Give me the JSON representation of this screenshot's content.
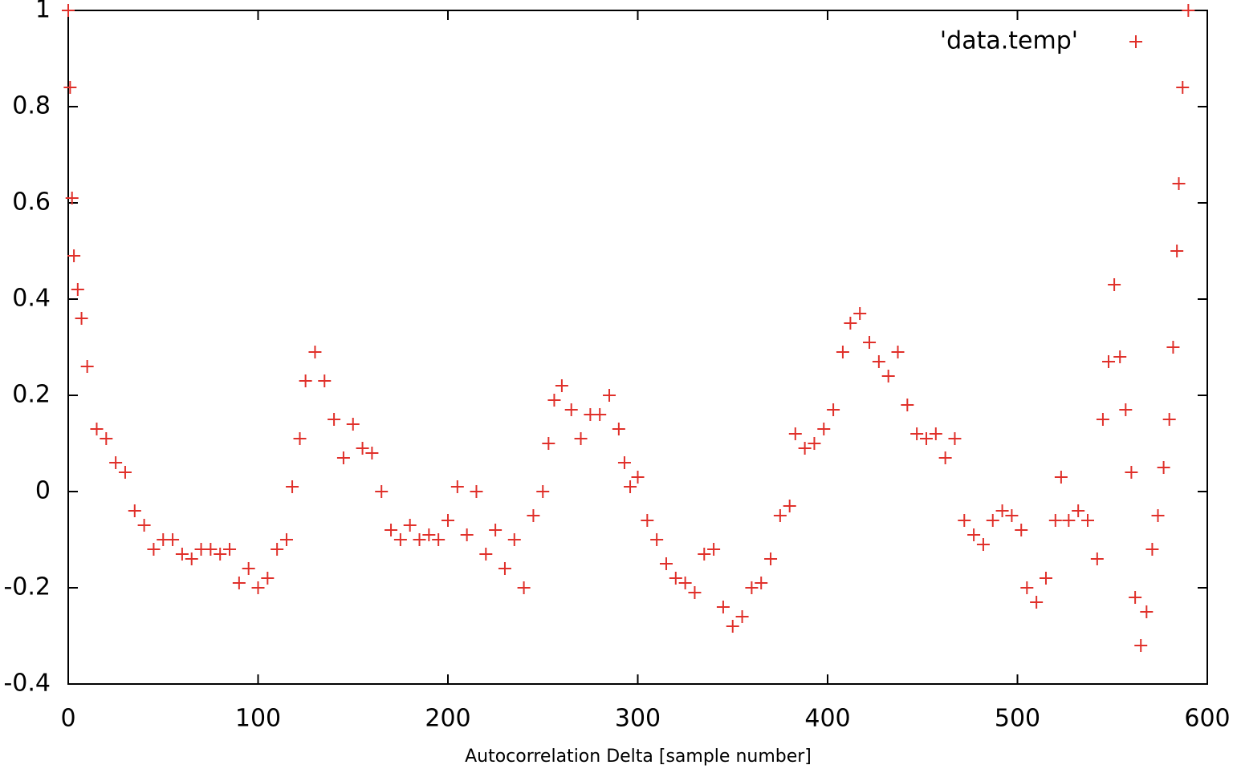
{
  "chart_data": {
    "type": "scatter",
    "x_label": "Autocorrelation Delta [sample number]",
    "xlim": [
      0,
      600
    ],
    "xticks": [
      0,
      100,
      200,
      300,
      400,
      500,
      600
    ],
    "ylim": [
      -0.4,
      1
    ],
    "yticks": [
      -0.4,
      -0.2,
      0,
      0.2,
      0.4,
      0.6,
      0.8,
      1
    ],
    "legend": "top-right",
    "series": [
      {
        "name": "'data.temp'",
        "color": "#e0302a",
        "x": [
          0,
          1,
          2,
          3,
          5,
          7,
          10,
          15,
          20,
          25,
          30,
          35,
          40,
          45,
          50,
          55,
          60,
          65,
          70,
          75,
          80,
          85,
          90,
          95,
          100,
          105,
          110,
          115,
          118,
          122,
          125,
          130,
          135,
          140,
          145,
          150,
          155,
          160,
          165,
          170,
          175,
          180,
          185,
          190,
          195,
          200,
          205,
          210,
          215,
          220,
          225,
          230,
          235,
          240,
          245,
          250,
          253,
          256,
          260,
          265,
          270,
          275,
          280,
          285,
          290,
          293,
          296,
          300,
          305,
          310,
          315,
          320,
          325,
          330,
          335,
          340,
          345,
          350,
          355,
          360,
          365,
          370,
          375,
          380,
          383,
          388,
          393,
          398,
          403,
          408,
          412,
          417,
          422,
          427,
          432,
          437,
          442,
          447,
          452,
          457,
          462,
          467,
          472,
          477,
          482,
          487,
          492,
          497,
          502,
          505,
          510,
          515,
          520,
          523,
          527,
          532,
          537,
          542,
          545,
          548,
          551,
          554,
          557,
          560,
          562,
          565,
          568,
          571,
          574,
          577,
          580,
          582,
          584,
          585,
          587,
          590
        ],
        "values": [
          1.0,
          0.84,
          0.61,
          0.49,
          0.42,
          0.36,
          0.26,
          0.13,
          0.11,
          0.06,
          0.04,
          -0.04,
          -0.07,
          -0.12,
          -0.1,
          -0.1,
          -0.13,
          -0.14,
          -0.12,
          -0.12,
          -0.13,
          -0.12,
          -0.19,
          -0.16,
          -0.2,
          -0.18,
          -0.12,
          -0.1,
          0.01,
          0.11,
          0.23,
          0.29,
          0.23,
          0.15,
          0.07,
          0.14,
          0.09,
          0.08,
          0.0,
          -0.08,
          -0.1,
          -0.07,
          -0.1,
          -0.09,
          -0.1,
          -0.06,
          0.01,
          -0.09,
          0.0,
          -0.13,
          -0.08,
          -0.16,
          -0.1,
          -0.2,
          -0.05,
          0.0,
          0.1,
          0.19,
          0.22,
          0.17,
          0.11,
          0.16,
          0.16,
          0.2,
          0.13,
          0.06,
          0.01,
          0.03,
          -0.06,
          -0.1,
          -0.15,
          -0.18,
          -0.19,
          -0.21,
          -0.13,
          -0.12,
          -0.24,
          -0.28,
          -0.26,
          -0.2,
          -0.19,
          -0.14,
          -0.05,
          -0.03,
          0.12,
          0.09,
          0.1,
          0.13,
          0.17,
          0.29,
          0.35,
          0.37,
          0.31,
          0.27,
          0.24,
          0.29,
          0.18,
          0.12,
          0.11,
          0.12,
          0.07,
          0.11,
          -0.06,
          -0.09,
          -0.11,
          -0.06,
          -0.04,
          -0.05,
          -0.08,
          -0.2,
          -0.23,
          -0.18,
          -0.06,
          0.03,
          -0.06,
          -0.04,
          -0.06,
          -0.14,
          0.15,
          0.27,
          0.43,
          0.28,
          0.17,
          0.04,
          -0.22,
          -0.32,
          -0.25,
          -0.12,
          -0.05,
          0.05,
          0.15,
          0.3,
          0.5,
          0.64,
          0.84,
          1.0
        ]
      }
    ]
  }
}
